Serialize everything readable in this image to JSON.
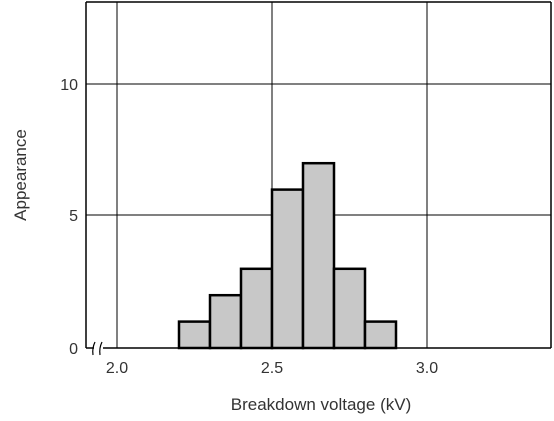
{
  "chart_data": {
    "type": "bar",
    "title": "",
    "xlabel": "Breakdown voltage (kV)",
    "ylabel": "Appearance",
    "x_ticks": [
      "2.0",
      "2.5",
      "3.0"
    ],
    "y_ticks": [
      "0",
      "5",
      "10"
    ],
    "xlim": [
      1.9,
      3.4
    ],
    "ylim": [
      0,
      13
    ],
    "axis_break": "x-axis break near origin",
    "grid": true,
    "bin_width": 0.1,
    "bins": [
      {
        "x0": 2.2,
        "x1": 2.3,
        "value": 1
      },
      {
        "x0": 2.3,
        "x1": 2.4,
        "value": 2
      },
      {
        "x0": 2.4,
        "x1": 2.5,
        "value": 3
      },
      {
        "x0": 2.5,
        "x1": 2.6,
        "value": 6
      },
      {
        "x0": 2.6,
        "x1": 2.7,
        "value": 7
      },
      {
        "x0": 2.7,
        "x1": 2.8,
        "value": 3
      },
      {
        "x0": 2.8,
        "x1": 2.9,
        "value": 1
      }
    ],
    "bar_color": "#c8c8c8",
    "bar_edge_color": "#000000"
  }
}
